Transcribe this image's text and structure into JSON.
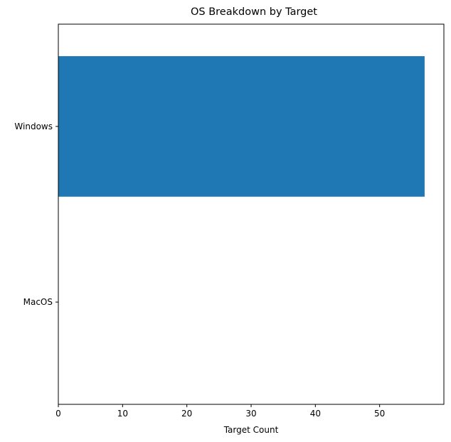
{
  "chart_data": {
    "type": "bar",
    "orientation": "horizontal",
    "title": "OS Breakdown by Target",
    "xlabel": "Target Count",
    "ylabel": "",
    "categories": [
      "Windows",
      "MacOS"
    ],
    "values": [
      57,
      0
    ],
    "xlim": [
      0,
      60
    ],
    "xticks": [
      0,
      10,
      20,
      30,
      40,
      50
    ],
    "bar_color": "#1f77b4",
    "grid": false,
    "legend": "none"
  }
}
